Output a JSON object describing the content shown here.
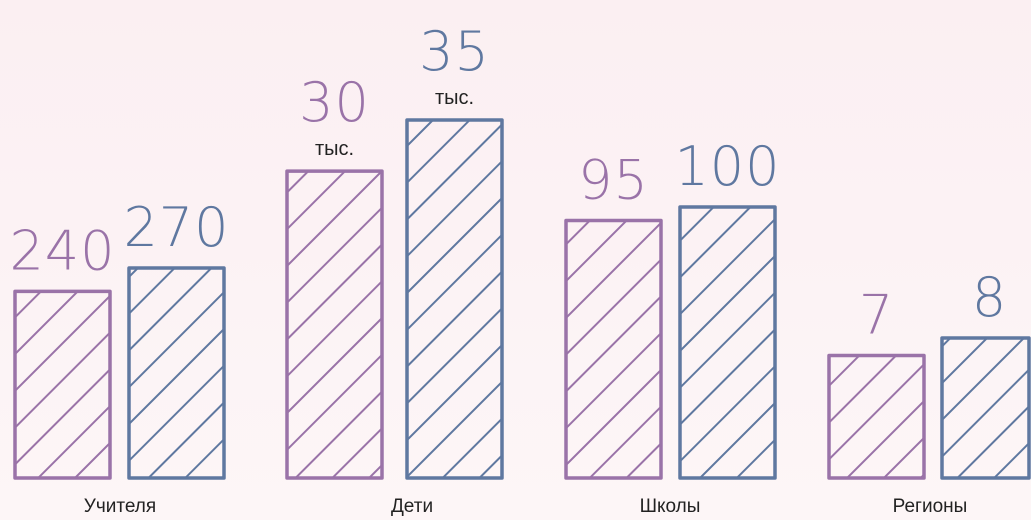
{
  "chart_data": {
    "type": "bar",
    "categories": [
      "Учителя",
      "Дети",
      "Школы",
      "Регионы"
    ],
    "series": [
      {
        "color": "#9a73a8",
        "values": [
          240,
          30,
          95,
          7
        ],
        "units": [
          null,
          "тыс.",
          null,
          null
        ]
      },
      {
        "color": "#5f78a0",
        "values": [
          270,
          35,
          100,
          8
        ],
        "units": [
          null,
          "тыс.",
          null,
          null
        ]
      }
    ]
  }
}
